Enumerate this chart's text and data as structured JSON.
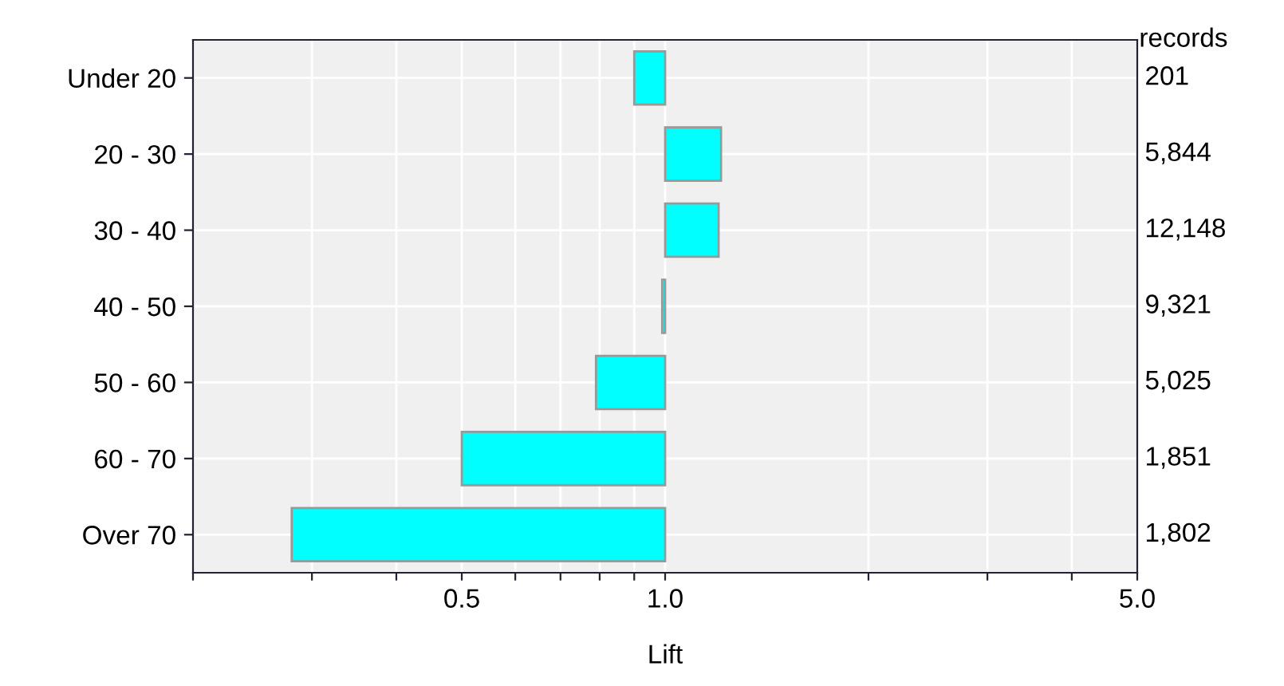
{
  "chart_data": {
    "type": "bar",
    "orientation": "horizontal",
    "xlabel": "Lift",
    "categories": [
      "Under 20",
      "20 - 30",
      "30 - 40",
      "40 - 50",
      "50 - 60",
      "60 - 70",
      "Over 70"
    ],
    "base": [
      1,
      1,
      1,
      1,
      1,
      1,
      1
    ],
    "values": [
      -0.1,
      0.21,
      0.2,
      -0.01,
      -0.21,
      -0.5,
      -0.72
    ],
    "color": "#00ffff",
    "log": "x",
    "xlim": [
      0.2,
      5
    ],
    "xticks": [
      {
        "value": 0.2,
        "label": null
      },
      {
        "value": 0.3,
        "label": null
      },
      {
        "value": 0.4,
        "label": null
      },
      {
        "value": 0.5,
        "label": "0.5"
      },
      {
        "value": 0.6,
        "label": null
      },
      {
        "value": 0.7,
        "label": null
      },
      {
        "value": 0.8,
        "label": null
      },
      {
        "value": 0.9,
        "label": null
      },
      {
        "value": 1,
        "label": "1.0"
      },
      {
        "value": 2,
        "label": null
      },
      {
        "value": 3,
        "label": null
      },
      {
        "value": 4,
        "label": null
      },
      {
        "value": 5,
        "label": "5.0"
      }
    ],
    "grid": true,
    "annotations": [
      "records",
      "201",
      "5,844",
      "12,148",
      "9,321",
      "5,025",
      "1,851",
      "1,802"
    ]
  }
}
